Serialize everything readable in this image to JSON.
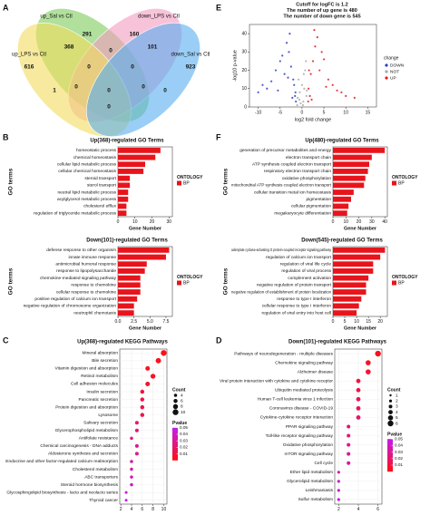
{
  "panel_labels": [
    "A",
    "E",
    "B",
    "F",
    "C",
    "D"
  ],
  "venn": {
    "sets": [
      {
        "name": "up_Sal vs Ctl",
        "color": "#7dcc5a"
      },
      {
        "name": "down_LPS vs Ctl",
        "color": "#f29bbf"
      },
      {
        "name": "up_LPS vs Ctl",
        "color": "#f2dc5d"
      },
      {
        "name": "down_Sal vs Ctl",
        "color": "#56aef0"
      }
    ],
    "regions": [
      291,
      160,
      368,
      0,
      101,
      616,
      0,
      0,
      923,
      1,
      0,
      0,
      0,
      0,
      0
    ]
  },
  "chart_data": [
    {
      "type": "scatter",
      "title": "Cutoff for logFC is 1.2",
      "subtitles": [
        "The number of up gene is 480",
        "The number of down gene is 545"
      ],
      "xlabel": "log2 fold change",
      "ylabel": "-log10 p-value",
      "xlim": [
        -12,
        17
      ],
      "xticks": [
        -10,
        -5,
        0,
        5,
        10,
        15
      ],
      "ylim": [
        0,
        45
      ],
      "yticks": [
        0,
        10,
        20,
        30,
        40
      ],
      "legend_title": "change",
      "series": [
        {
          "name": "DOWN",
          "color": "#2b3fc4",
          "x": [
            -1.5,
            -2,
            -2.5,
            -3,
            -1.8,
            -4,
            -5,
            -6,
            -2.2,
            -3.5,
            -7,
            -8,
            -1.4,
            -2.8,
            -4.5,
            -9,
            -10,
            -3.2,
            -5.5,
            -1.6
          ],
          "values": [
            8,
            15,
            22,
            30,
            12,
            18,
            25,
            20,
            5,
            35,
            14,
            10,
            3,
            40,
            28,
            12,
            8,
            16,
            9,
            6
          ]
        },
        {
          "name": "NOT",
          "color": "#a9a9a9",
          "x": [
            -1,
            -0.5,
            0,
            0.5,
            1,
            -0.8,
            0.3,
            0.7,
            -0.3,
            1.1,
            -1.1,
            0.9,
            -0.6,
            0.2,
            0.4
          ],
          "values": [
            5,
            8,
            12,
            10,
            6,
            15,
            3,
            20,
            2,
            9,
            1,
            25,
            4,
            1,
            18
          ]
        },
        {
          "name": "UP",
          "color": "#e3191c",
          "x": [
            1.5,
            2,
            2.5,
            3,
            1.8,
            4,
            5,
            6,
            2.2,
            3.5,
            7,
            8,
            1.4,
            2.8,
            4.5,
            9,
            10,
            12,
            5.5,
            1.6
          ],
          "values": [
            10,
            18,
            25,
            33,
            6,
            20,
            26,
            15,
            4,
            38,
            12,
            9,
            3,
            42,
            30,
            8,
            6,
            5,
            11,
            20
          ]
        }
      ]
    },
    {
      "type": "bar",
      "title": "Up(368)-regulated GO Terms",
      "xlabel": "Gene Number",
      "ylabel": "GO terms",
      "legend_title": "ONTOLOGY",
      "categories": [
        "homeostatic process",
        "chemical homeostasis",
        "cellular lipid metabolic process",
        "cellular chemical homeostasis",
        "steroid transport",
        "sterol transport",
        "neutral lipid metabolic process",
        "acylglycerol metabolic process",
        "cholesterol efflux",
        "regulation of triglyceride metabolic process"
      ],
      "series": [
        {
          "name": "BP",
          "color": "#e8141c",
          "values": [
            25,
            22,
            16,
            15,
            7,
            7,
            6,
            6,
            5,
            5
          ]
        }
      ],
      "xlim": [
        0,
        32
      ],
      "xticks": [
        0,
        10,
        20,
        30
      ]
    },
    {
      "type": "bar",
      "title": "Down(101)-regulated GO Terms",
      "xlabel": "Gene Number",
      "ylabel": "GO terms",
      "legend_title": "ONTOLOGY",
      "categories": [
        "defense response to other organism",
        "innate immune response",
        "antimicrobial humoral response",
        "response to lipopolysaccharide",
        "chemokine-mediated signaling pathway",
        "response to chemokine",
        "cellular response to chemokine",
        "positive regulation of calcium ion transport",
        "negative regulation of chromosome organization",
        "neutrophil chemotaxis"
      ],
      "series": [
        {
          "name": "BP",
          "color": "#e8141c",
          "values": [
            8,
            7.5,
            4.5,
            4.2,
            3.5,
            3.5,
            3.5,
            3,
            2.5,
            2.5
          ]
        }
      ],
      "xlim": [
        0,
        8.5
      ],
      "xticks": [
        {
          "value": 0,
          "label": "0.0"
        },
        2.5,
        {
          "value": 5,
          "label": "5.0"
        },
        7.5
      ]
    },
    {
      "type": "bar",
      "title": "Up(480)-regulated GO Terms",
      "xlabel": "Gene Number",
      "ylabel": "GO terms",
      "legend_title": "ONTOLOGY",
      "categories": [
        "generation of precursor metabolites and energy",
        "electron transport chain",
        "ATP synthesis coupled electron transport",
        "respiratory electron transport chain",
        "oxidative phosphorylation",
        "mitochondrial ATP synthesis coupled electron transport",
        "cellular transition metal ion homeostasis",
        "pigmentation",
        "cellular pigmentation",
        "megakaryocyte differentiation"
      ],
      "series": [
        {
          "name": "BP",
          "color": "#e8141c",
          "values": [
            40,
            30,
            28,
            27,
            25,
            24,
            16,
            14,
            12,
            11
          ]
        }
      ],
      "xlim": [
        0,
        42
      ],
      "xticks": [
        0,
        10,
        20,
        30,
        40
      ]
    },
    {
      "type": "bar",
      "title": "Down(545)-regulated GO Terms",
      "xlabel": "Gene Number",
      "ylabel": "GO terms",
      "legend_title": "ONTOLOGY",
      "categories": [
        "adenylate cyclase-activating G protein-coupled receptor signaling pathway",
        "regulation of calcium ion transport",
        "regulation of viral life cycle",
        "regulation of viral process",
        "complement activation",
        "negative regulation of protein transport",
        "negative regulation of establishment of protein localization",
        "response to type I interferon",
        "cellular response to type I interferon",
        "regulation of viral entry into host cell"
      ],
      "series": [
        {
          "name": "BP",
          "color": "#e8141c",
          "values": [
            22,
            20,
            17,
            17,
            15,
            14,
            14,
            12,
            11,
            10
          ]
        }
      ],
      "xlim": [
        0,
        23
      ],
      "xticks": [
        0,
        5,
        10,
        15,
        20
      ]
    },
    {
      "type": "dot",
      "title": "Up(368)-regulated KEGG Pathways",
      "categories": [
        "Mineral absorption",
        "Bile secretion",
        "Vitamin digestion and absorption",
        "Retinol metabolism",
        "Cell adhesion molecules",
        "Insulin secretion",
        "Pancreatic secretion",
        "Protein digestion and absorption",
        "Lysosome",
        "Salivary secretion",
        "Glycerophospholipid metabolism",
        "Antifolate resistance",
        "Chemical carcinogenesis - DNA adducts",
        "Aldosterone synthesis and secretion",
        "Endocrine and other factor-regulated calcium reabsorption",
        "Cholesterol metabolism",
        "ABC transporters",
        "Steroid hormone biosynthesis",
        "Glycosphingolipid biosynthesis - lacto and neolacto series",
        "Thyroid cancer"
      ],
      "values": [
        10,
        9,
        7,
        8,
        7,
        6,
        6,
        6,
        6,
        5,
        5,
        4,
        5,
        5,
        4,
        4,
        4,
        4,
        3,
        3
      ],
      "pvalues": [
        0.001,
        0.002,
        0.003,
        0.004,
        0.006,
        0.01,
        0.012,
        0.013,
        0.015,
        0.02,
        0.022,
        0.025,
        0.028,
        0.03,
        0.032,
        0.035,
        0.038,
        0.04,
        0.045,
        0.048
      ],
      "xlim": [
        1.8,
        10.6
      ],
      "xticks": [
        2,
        4,
        6,
        8,
        10
      ],
      "size_legend_title": "Count",
      "size_ticks": [
        4,
        6,
        8,
        10
      ],
      "color_legend_title": "Pvalue",
      "clim": [
        0,
        0.05
      ],
      "cticks": [
        0.05,
        0.04,
        0.03,
        0.02,
        0.01
      ],
      "color_low": "#ff1010",
      "color_high": "#c21cf0"
    },
    {
      "type": "dot",
      "title": "Down(101)-regulated KEGG Pathways",
      "categories": [
        "Pathways of neurodegeneration - multiple diseases",
        "Chemokine signaling pathway",
        "Alzheimer disease",
        "Viral protein interaction with cytokine and cytokine receptor",
        "Ubiquitin mediated proteolysis",
        "Human T-cell leukemia virus 1 infection",
        "Coronavirus disease - COVID-19",
        "Cytokine-cytokine receptor interaction",
        "PPAR signaling pathway",
        "Toll-like receptor signaling pathway",
        "Oxidative phosphorylation",
        "mTOR signaling pathway",
        "Cell cycle",
        "Ether lipid metabolism",
        "Glycerolipid metabolism",
        "Leishmaniasis",
        "Sulfur metabolism"
      ],
      "values": [
        6,
        5,
        5,
        4,
        4,
        4,
        4,
        4,
        3,
        3,
        3,
        3,
        3,
        2,
        2,
        2,
        2
      ],
      "pvalues": [
        0.003,
        0.004,
        0.008,
        0.01,
        0.012,
        0.015,
        0.018,
        0.02,
        0.022,
        0.025,
        0.028,
        0.03,
        0.033,
        0.036,
        0.04,
        0.043,
        0.046
      ],
      "xlim": [
        1.6,
        6.4
      ],
      "xticks": [
        2,
        4,
        6
      ],
      "size_legend_title": "Count",
      "size_ticks": [
        1,
        2,
        3,
        4,
        5,
        6
      ],
      "color_legend_title": "Pvalue",
      "clim": [
        0,
        0.05
      ],
      "cticks": [
        0.05,
        0.04,
        0.03,
        0.02,
        0.01
      ],
      "color_low": "#ff1010",
      "color_high": "#c21cf0"
    }
  ]
}
